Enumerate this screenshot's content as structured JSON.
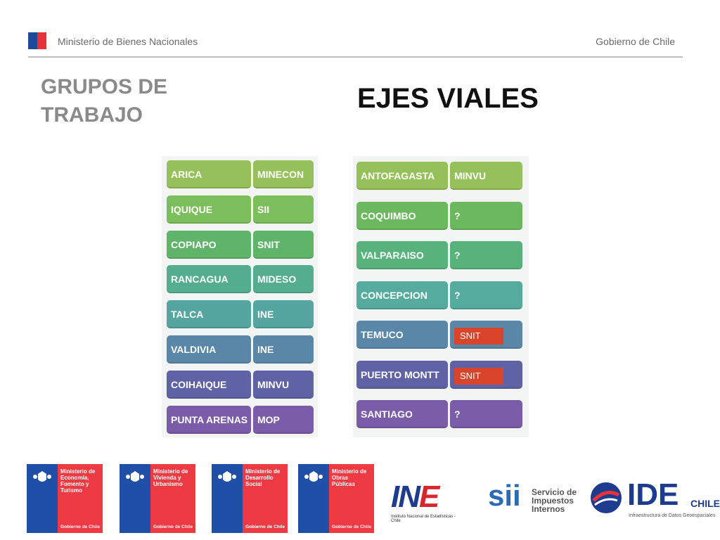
{
  "header": {
    "left": "Ministerio de Bienes Nacionales",
    "right": "Gobierno de Chile"
  },
  "title_left": "GRUPOS DE\nTRABAJO",
  "title_main": "EJES VIALES",
  "left_table": [
    {
      "city": "ARICA",
      "org": "MINECON",
      "color": "#95c05a"
    },
    {
      "city": "IQUIQUE",
      "org": "SII",
      "color": "#7cbd5c"
    },
    {
      "city": "COPIAPO",
      "org": "SNIT",
      "color": "#5fb46a"
    },
    {
      "city": "RANCAGUA",
      "org": "MIDESO",
      "color": "#55ad8f"
    },
    {
      "city": "TALCA",
      "org": "INE",
      "color": "#55a6a0"
    },
    {
      "city": "VALDIVIA",
      "org": "INE",
      "color": "#5a87a8"
    },
    {
      "city": "COIHAIQUE",
      "org": "MINVU",
      "color": "#5f63a5"
    },
    {
      "city": "PUNTA ARENAS",
      "org": "MOP",
      "color": "#7b5ca8"
    }
  ],
  "right_table": [
    {
      "city": "ANTOFAGASTA",
      "org": "MINVU",
      "tag": "",
      "color": "#95c05a"
    },
    {
      "city": "COQUIMBO",
      "org": "?",
      "tag": "",
      "color": "#6cb85f"
    },
    {
      "city": "VALPARAISO",
      "org": "?",
      "tag": "",
      "color": "#58b27c"
    },
    {
      "city": "CONCEPCION",
      "org": "?",
      "tag": "",
      "color": "#55ab9e"
    },
    {
      "city": "TEMUCO",
      "org": "",
      "tag": "SNIT",
      "color": "#5a87a8"
    },
    {
      "city": "PUERTO MONTT",
      "org": "",
      "tag": "SNIT",
      "color": "#5f63a5"
    },
    {
      "city": "SANTIAGO",
      "org": "?",
      "tag": "",
      "color": "#7b5ca8"
    }
  ],
  "logos": [
    {
      "name": "Ministerio de Economía, Fomento y Turismo",
      "footer": "Gobierno de Chile"
    },
    {
      "name": "Ministerio de Vivienda y Urbanismo",
      "footer": "Gobierno de Chile"
    },
    {
      "name": "Ministerio de Desarrollo Social",
      "footer": "Gobierno de Chile"
    },
    {
      "name": "Ministerio de Obras Públicas",
      "footer": "Gobierno de Chile"
    }
  ],
  "ine": {
    "mark_a": "IN",
    "mark_b": "E",
    "sub": "Instituto Nacional de Estadísticas - Chile"
  },
  "sii": {
    "mark": "sii",
    "text": "Servicio de Impuestos Internos"
  },
  "ide": {
    "mark": "IDE",
    "chile": "CHILE",
    "sub": "Infraestructura de Datos Geoespaciales"
  }
}
